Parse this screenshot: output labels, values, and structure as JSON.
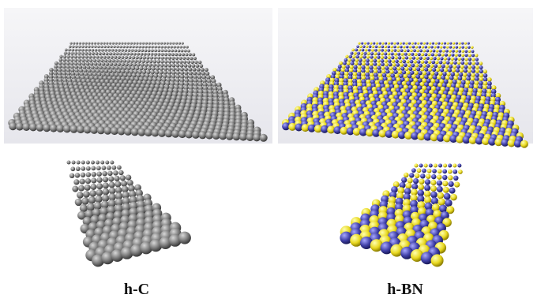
{
  "panels": [
    {
      "label": "h-C"
    },
    {
      "label": "h-BN"
    }
  ]
}
